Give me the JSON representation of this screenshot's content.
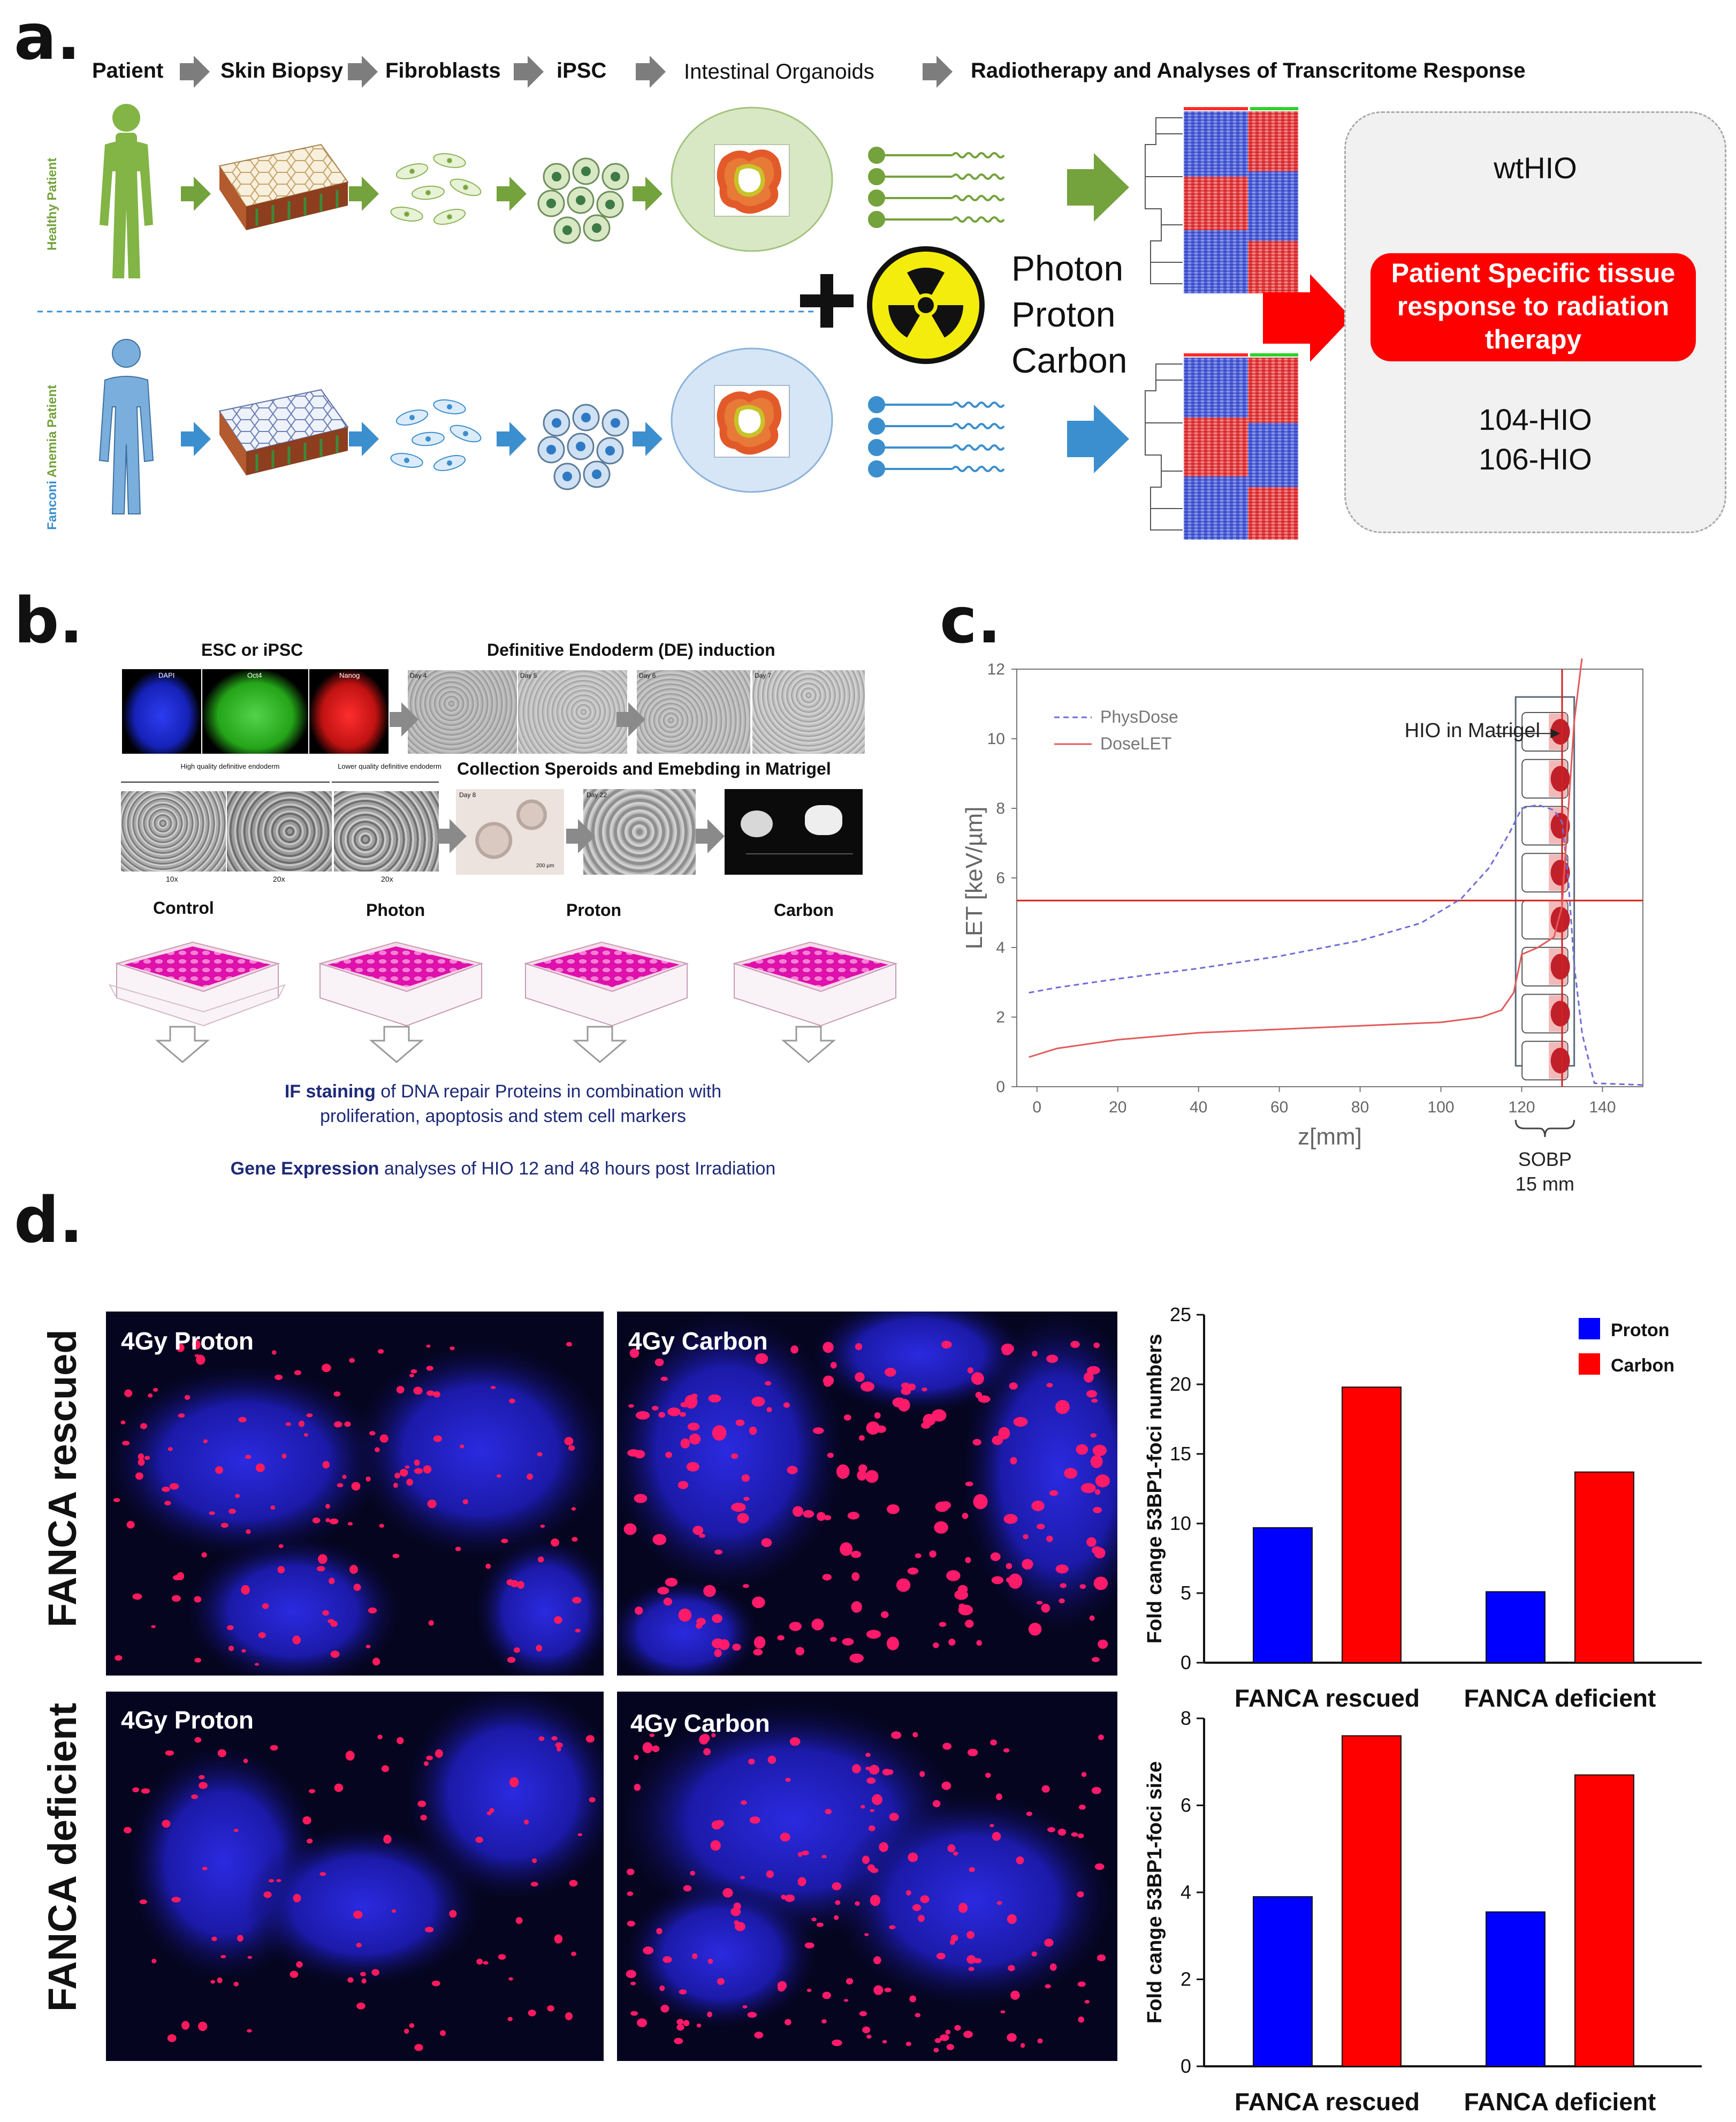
{
  "panels": {
    "a": "a.",
    "b": "b.",
    "c": "c.",
    "d": "d."
  },
  "panel_a": {
    "steps": [
      "Patient",
      "Skin Biopsy",
      "Fibroblasts",
      "iPSC",
      "Intestinal  Organoids",
      "Radiotherapy and Analyses of Transcritome Response"
    ],
    "healthy_label": "Healthy Patient",
    "fanconi_label_1": "Fanconi",
    "fanconi_label_2": " Anemia Patient",
    "radiation_types": [
      "Photon",
      "Proton",
      "Carbon"
    ],
    "result_top": "wtHIO",
    "result_highlight": "Patient Specific tissue response to radiation therapy",
    "result_bottom": [
      "104-HIO",
      "106-HIO"
    ],
    "colors": {
      "healthy": "#74a23c",
      "fanconi": "#3b8fce",
      "highlight": "#ff0000",
      "radiation": "#f4ec0c"
    }
  },
  "panel_b": {
    "esc_title": "ESC or iPSC",
    "stain_labels": [
      "DAPI",
      "Oct4",
      "Nanog"
    ],
    "de_title": "Definitive Endoderm (DE) induction",
    "de_days": [
      "Day 4",
      "Day 5",
      "Day 6",
      "Day 7"
    ],
    "hq_label": "High quality definitive endoderm",
    "lq_label": "Lower quality definitive endoderm",
    "mags": [
      "10x",
      "20x",
      "20x"
    ],
    "collection_title": "Collection Speroids and Emebding in Matrigel",
    "coll_days": [
      "Day 8",
      "Day 22"
    ],
    "scale_bar": "200 µm",
    "plate_labels": [
      "Control",
      "Photon",
      "Proton",
      "Carbon"
    ],
    "if_bold": "IF staining",
    "if_rest": " of DNA repair  Proteins in combination with",
    "if_line2": "proliferation, apoptosis and stem cell markers",
    "ge_bold": "Gene Expression",
    "ge_rest": " analyses of HIO 12 and 48 hours post Irradiation"
  },
  "chart_data": [
    {
      "type": "line",
      "panel": "c",
      "xlabel": "z[mm]",
      "ylabel": "LET [keV/µm]",
      "xlim": [
        -5,
        150
      ],
      "ylim": [
        0,
        12
      ],
      "xticks": [
        0,
        20,
        40,
        60,
        80,
        100,
        120,
        140
      ],
      "yticks": [
        0,
        2,
        4,
        6,
        8,
        10,
        12
      ],
      "legend_position": "top-left",
      "series": [
        {
          "name": "PhysDose",
          "style": "dashed",
          "color": "#6d6dd8",
          "x": [
            -2,
            5,
            20,
            40,
            60,
            80,
            95,
            105,
            112,
            117,
            120,
            124,
            128,
            130,
            131.5,
            133,
            135,
            138,
            150
          ],
          "y": [
            2.7,
            2.85,
            3.1,
            3.4,
            3.75,
            4.2,
            4.7,
            5.4,
            6.3,
            7.3,
            8.0,
            8.1,
            7.95,
            7.6,
            6.0,
            3.5,
            1.5,
            0.1,
            0.05
          ]
        },
        {
          "name": "DoseLET",
          "style": "solid",
          "color": "#e35a5a",
          "x": [
            -2,
            5,
            20,
            40,
            60,
            80,
            100,
            110,
            115,
            118,
            120,
            124,
            128,
            130,
            131,
            133,
            135
          ],
          "y": [
            0.85,
            1.1,
            1.35,
            1.55,
            1.65,
            1.75,
            1.85,
            2.0,
            2.2,
            2.7,
            3.8,
            4.0,
            4.3,
            5.2,
            7.0,
            10.5,
            12.4
          ]
        }
      ],
      "reference_lines": {
        "horizontal_y": 5.35,
        "vertical_x": 130
      },
      "annotations": [
        "HIO in Matrigel",
        "SOBP",
        "15 mm"
      ]
    },
    {
      "type": "bar",
      "panel": "d-top",
      "categories": [
        "FANCA rescued",
        "FANCA deficient"
      ],
      "series": [
        {
          "name": "Proton",
          "values": [
            9.7,
            5.1
          ],
          "color": "#0000ff"
        },
        {
          "name": "Carbon",
          "values": [
            19.8,
            13.7
          ],
          "color": "#ff0000"
        }
      ],
      "ylabel": "Fold cange  53BP1-foci numbers",
      "ylim": [
        0,
        25
      ],
      "yticks": [
        0,
        5,
        10,
        15,
        20,
        25
      ],
      "legend_position": "top-right"
    },
    {
      "type": "bar",
      "panel": "d-bottom",
      "categories": [
        "FANCA rescued",
        "FANCA deficient"
      ],
      "series": [
        {
          "values": [
            3.9,
            3.55
          ],
          "color": "#0000ff"
        },
        {
          "values": [
            7.6,
            6.7
          ],
          "color": "#ff0000"
        }
      ],
      "ylabel": "Fold cange  53BP1-foci size",
      "ylim": [
        0,
        8
      ],
      "yticks": [
        0,
        2,
        4,
        6,
        8
      ]
    }
  ],
  "panel_d": {
    "row_labels": [
      "FANCA rescued",
      "FANCA deficient"
    ],
    "image_labels": [
      "4Gy Proton",
      "4Gy Carbon",
      "4Gy Proton",
      "4Gy Carbon"
    ]
  }
}
